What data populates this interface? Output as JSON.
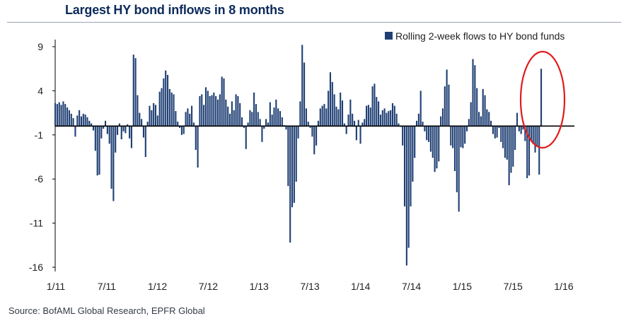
{
  "title": "Largest HY bond inflows in 8 months",
  "source": "Source: BofAML Global Research, EPFR Global",
  "colors": {
    "bar": "#1f3f73",
    "highlight": "#e01b1b",
    "axis": "#000000",
    "title": "#0b2a5b"
  },
  "chart_data": {
    "type": "bar",
    "title": "Largest HY bond inflows in 8 months",
    "xlabel": "",
    "ylabel": "",
    "ylim": [
      -16,
      9
    ],
    "y_ticks": [
      9,
      4,
      -1,
      -6,
      -11,
      -16
    ],
    "x_tick_labels": [
      "1/11",
      "7/11",
      "1/12",
      "7/12",
      "1/13",
      "7/13",
      "1/14",
      "7/14",
      "1/15",
      "7/15",
      "1/16"
    ],
    "x_start": "1/11",
    "x_end": "1/16",
    "legend": {
      "label": "Rolling 2-week flows to HY bond funds",
      "position": "top-right"
    },
    "annotation": {
      "type": "ellipse",
      "description": "latest week highlighted"
    },
    "series": [
      {
        "name": "Rolling 2-week flows to HY bond funds",
        "values": [
          2.6,
          2.5,
          2.7,
          2.4,
          2.8,
          2.5,
          2.1,
          1.8,
          1.4,
          0.9,
          -1.2,
          1.2,
          1.8,
          1.1,
          1.4,
          1.3,
          1.0,
          0.6,
          0.3,
          -0.5,
          -2.8,
          -5.6,
          -5.5,
          -1.4,
          -0.3,
          0.6,
          -0.9,
          -2.0,
          -7.1,
          -8.5,
          -3.0,
          -1.0,
          0.3,
          -1.5,
          -0.6,
          -0.8,
          0.2,
          -1.4,
          -2.5,
          8.1,
          7.7,
          3.5,
          1.5,
          0.8,
          -1.3,
          -3.5,
          0.5,
          2.3,
          1.8,
          2.6,
          2.4,
          1.2,
          3.9,
          4.3,
          5.4,
          6.3,
          5.8,
          4.2,
          3.8,
          3.6,
          1.7,
          0.5,
          -0.2,
          -1.0,
          -0.9,
          1.6,
          2.0,
          1.4,
          2.3,
          0.4,
          -2.7,
          -4.7,
          3.4,
          3.6,
          2.4,
          4.4,
          4.0,
          3.4,
          3.5,
          3.8,
          3.4,
          3.0,
          3.6,
          5.6,
          5.4,
          3.0,
          2.2,
          1.4,
          2.8,
          1.8,
          3.6,
          3.4,
          2.6,
          1.0,
          -0.2,
          -2.6,
          0.4,
          1.8,
          1.6,
          3.8,
          2.5,
          1.6,
          0.8,
          -1.8,
          -0.3,
          0.8,
          0.4,
          2.7,
          1.3,
          2.1,
          3.0,
          2.0,
          1.7,
          1.0,
          0.1,
          -0.4,
          -6.8,
          -13.2,
          -9.2,
          -8.7,
          -6.3,
          -1.4,
          2.8,
          9.2,
          7.2,
          2.0,
          0.5,
          -0.2,
          -1.2,
          -3.2,
          -2.2,
          0.6,
          2.0,
          2.3,
          2.5,
          2.0,
          4.0,
          6.1,
          5.0,
          3.6,
          2.2,
          1.9,
          3.8,
          2.9,
          0.3,
          -0.9,
          1.3,
          3.0,
          1.4,
          0.6,
          -1.6,
          0.7,
          -2.0,
          0.4,
          0.8,
          2.3,
          2.4,
          2.1,
          4.5,
          4.8,
          3.3,
          2.8,
          1.3,
          1.8,
          2.0,
          1.5,
          1.7,
          1.8,
          2.6,
          2.3,
          1.4,
          0.3,
          -0.1,
          -2.2,
          -9.1,
          -15.8,
          -13.8,
          -9.1,
          -6.3,
          -3.6,
          0.6,
          1.4,
          4.0,
          0.5,
          -0.6,
          -1.6,
          -1.8,
          -2.9,
          -3.6,
          -5.2,
          -4.8,
          -4.0,
          1.1,
          2.0,
          4.5,
          6.4,
          4.7,
          -2.2,
          -2.5,
          -5.1,
          -7.5,
          -9.7,
          -2.4,
          -2.5,
          -2.0,
          -0.6,
          0.8,
          2.7,
          7.6,
          6.9,
          4.3,
          1.6,
          1.1,
          4.2,
          3.5,
          1.9,
          1.6,
          0.6,
          -0.9,
          -1.4,
          -1.3,
          -0.2,
          -1.8,
          -2.5,
          -3.6,
          -3.8,
          -6.7,
          -5.3,
          -4.6,
          -2.7,
          1.5,
          -0.6,
          -0.9,
          -0.4,
          -1.7,
          -5.9,
          -5.6,
          -1.7,
          -2.0,
          -3.0,
          -2.3,
          -5.5,
          6.5
        ]
      }
    ]
  }
}
